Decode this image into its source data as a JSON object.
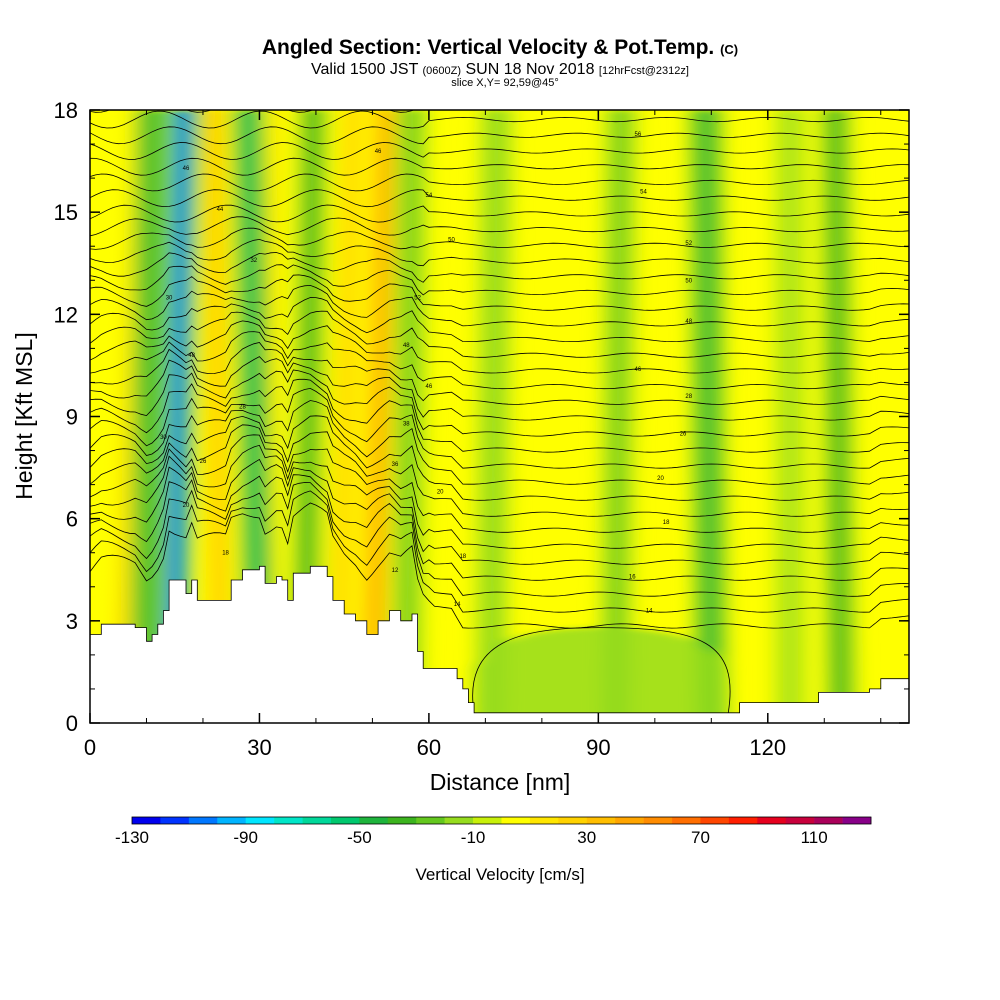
{
  "header": {
    "title": "Angled Section: Vertical Velocity & Pot.Temp.",
    "title_suffix": "(C)",
    "valid_prefix": "Valid 1500 JST",
    "valid_utc": "(0600Z)",
    "valid_date": "SUN 18 Nov 2018",
    "forecast": "[12hrFcst@2312z]",
    "slice": "slice X,Y= 92,59@45°"
  },
  "chart_data": {
    "type": "heatmap",
    "x": {
      "label": "Distance [nm]",
      "range": [
        0,
        145
      ],
      "ticks": [
        0,
        30,
        60,
        90,
        120
      ],
      "tick_labels": [
        "0",
        "30",
        "60",
        "90",
        "120"
      ]
    },
    "y": {
      "label": "Height [Kft MSL]",
      "range": [
        0,
        18
      ],
      "ticks": [
        0,
        3,
        6,
        9,
        12,
        15,
        18
      ],
      "tick_labels": [
        "0",
        "3",
        "6",
        "9",
        "12",
        "15",
        "18"
      ]
    },
    "colorbar": {
      "label": "Vertical Velocity [cm/s]",
      "range": [
        -130,
        130
      ],
      "step": 10,
      "tick_labels": [
        "-130",
        "-90",
        "-50",
        "-10",
        "30",
        "70",
        "110"
      ],
      "colors": [
        "#0000ee",
        "#0033ff",
        "#0077ff",
        "#00b4ff",
        "#00e6ff",
        "#00e6c8",
        "#00d89a",
        "#00c86e",
        "#1eb43c",
        "#3cb41e",
        "#64c81e",
        "#96dc1e",
        "#c8f00a",
        "#ffff00",
        "#ffe600",
        "#ffd200",
        "#ffbe00",
        "#ffa500",
        "#ff8c00",
        "#ff6e00",
        "#ff4600",
        "#ff1e00",
        "#e6001e",
        "#c8003c",
        "#aa005a",
        "#880088"
      ]
    },
    "terrain_height_kft": [
      [
        0,
        2.6
      ],
      [
        2,
        2.9
      ],
      [
        8,
        2.8
      ],
      [
        10,
        2.4
      ],
      [
        11,
        2.6
      ],
      [
        12,
        2.9
      ],
      [
        13,
        3.3
      ],
      [
        14,
        4.2
      ],
      [
        17,
        3.8
      ],
      [
        18,
        4.2
      ],
      [
        19,
        3.6
      ],
      [
        24,
        3.6
      ],
      [
        25,
        4.2
      ],
      [
        27,
        4.5
      ],
      [
        30,
        4.6
      ],
      [
        31,
        4.1
      ],
      [
        33,
        4.3
      ],
      [
        34,
        4.2
      ],
      [
        35,
        3.6
      ],
      [
        36,
        4.4
      ],
      [
        39,
        4.6
      ],
      [
        42,
        4.3
      ],
      [
        43,
        3.6
      ],
      [
        45,
        3.2
      ],
      [
        47,
        3.0
      ],
      [
        49,
        2.6
      ],
      [
        51,
        3.0
      ],
      [
        53,
        3.3
      ],
      [
        55,
        3.0
      ],
      [
        57,
        3.2
      ],
      [
        58,
        2.1
      ],
      [
        59,
        1.6
      ],
      [
        64,
        1.6
      ],
      [
        65,
        1.3
      ],
      [
        66,
        1.0
      ],
      [
        67,
        0.6
      ],
      [
        68,
        0.3
      ],
      [
        72,
        0.3
      ],
      [
        76,
        0.3
      ],
      [
        113,
        0.3
      ],
      [
        115,
        0.6
      ],
      [
        120,
        0.6
      ],
      [
        129,
        0.9
      ],
      [
        138,
        1.0
      ],
      [
        140,
        1.3
      ],
      [
        145,
        1.3
      ]
    ],
    "updraft_bands": [
      {
        "x_top": 52.5,
        "x_bottom": 50,
        "w": 40
      },
      {
        "x_top": 22,
        "x_bottom": 23,
        "w": 30
      },
      {
        "x_top": 12,
        "x_bottom": 11,
        "w": 45
      },
      {
        "x_top": 9,
        "x_bottom": 6,
        "w": 25
      },
      {
        "x_top": 46.5,
        "x_bottom": 44,
        "w": 20
      },
      {
        "x_top": 33,
        "x_bottom": 32,
        "w": 15
      }
    ],
    "downdraft_bands": [
      {
        "x_top": 16.5,
        "x_bottom": 14.5,
        "w": -120
      },
      {
        "x_top": 11,
        "x_bottom": 10,
        "w": -50
      },
      {
        "x_top": 28,
        "x_bottom": 30,
        "w": -60
      },
      {
        "x_top": 39.5,
        "x_bottom": 38,
        "w": -40
      },
      {
        "x_top": 57,
        "x_bottom": 56,
        "w": -30
      },
      {
        "x_top": 72,
        "x_bottom": 71,
        "w": -20
      },
      {
        "x_top": 94,
        "x_bottom": 93,
        "w": -25
      },
      {
        "x_top": 109,
        "x_bottom": 110,
        "w": -45
      },
      {
        "x_top": 124,
        "x_bottom": 124,
        "w": -15
      },
      {
        "x_top": 132,
        "x_bottom": 133,
        "w": -40
      }
    ],
    "isentrope_labels": [
      {
        "text": "56",
        "x": 97,
        "y": 17.3
      },
      {
        "text": "54",
        "x": 98,
        "y": 15.6
      },
      {
        "text": "52",
        "x": 106,
        "y": 14.1
      },
      {
        "text": "50",
        "x": 106,
        "y": 13.0
      },
      {
        "text": "48",
        "x": 106,
        "y": 11.8
      },
      {
        "text": "46",
        "x": 97,
        "y": 10.4
      },
      {
        "text": "28",
        "x": 106,
        "y": 9.6
      },
      {
        "text": "26",
        "x": 105,
        "y": 8.5
      },
      {
        "text": "20",
        "x": 101,
        "y": 7.2
      },
      {
        "text": "18",
        "x": 102,
        "y": 5.9
      },
      {
        "text": "16",
        "x": 96,
        "y": 4.3
      },
      {
        "text": "14",
        "x": 99,
        "y": 3.3
      },
      {
        "text": "18",
        "x": 66,
        "y": 4.9
      },
      {
        "text": "14",
        "x": 65,
        "y": 3.5
      },
      {
        "text": "12",
        "x": 54,
        "y": 4.5
      },
      {
        "text": "46",
        "x": 51,
        "y": 16.8
      },
      {
        "text": "54",
        "x": 60,
        "y": 15.5
      },
      {
        "text": "50",
        "x": 64,
        "y": 14.2
      },
      {
        "text": "52",
        "x": 58,
        "y": 12.5
      },
      {
        "text": "48",
        "x": 56,
        "y": 11.1
      },
      {
        "text": "46",
        "x": 60,
        "y": 9.9
      },
      {
        "text": "38",
        "x": 56,
        "y": 8.8
      },
      {
        "text": "36",
        "x": 54,
        "y": 7.6
      },
      {
        "text": "20",
        "x": 62,
        "y": 6.8
      },
      {
        "text": "46",
        "x": 17,
        "y": 16.3
      },
      {
        "text": "44",
        "x": 23,
        "y": 15.1
      },
      {
        "text": "32",
        "x": 29,
        "y": 13.6
      },
      {
        "text": "30",
        "x": 14,
        "y": 12.5
      },
      {
        "text": "48",
        "x": 18,
        "y": 10.8
      },
      {
        "text": "28",
        "x": 27,
        "y": 9.3
      },
      {
        "text": "30",
        "x": 13,
        "y": 8.4
      },
      {
        "text": "26",
        "x": 20,
        "y": 7.7
      },
      {
        "text": "20",
        "x": 17,
        "y": 6.4
      },
      {
        "text": "18",
        "x": 24,
        "y": 5.0
      }
    ]
  }
}
